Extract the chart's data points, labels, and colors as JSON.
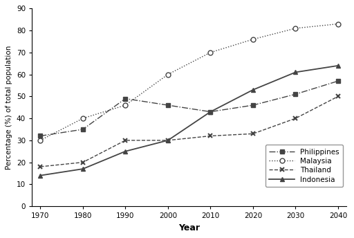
{
  "years": [
    1970,
    1980,
    1990,
    2000,
    2010,
    2020,
    2030,
    2040
  ],
  "philippines": [
    32,
    35,
    49,
    46,
    43,
    46,
    51,
    57
  ],
  "malaysia": [
    30,
    40,
    46,
    60,
    70,
    76,
    81,
    83
  ],
  "thailand": [
    18,
    20,
    30,
    30,
    32,
    33,
    40,
    50
  ],
  "indonesia": [
    14,
    17,
    25,
    30,
    43,
    53,
    61,
    64
  ],
  "ylabel": "Percentage (%) of total population",
  "xlabel": "Year",
  "ylim": [
    0,
    90
  ],
  "xlim_min": 1968,
  "xlim_max": 2042,
  "yticks": [
    0,
    10,
    20,
    30,
    40,
    50,
    60,
    70,
    80,
    90
  ],
  "xticks": [
    1970,
    1980,
    1990,
    2000,
    2010,
    2020,
    2030,
    2040
  ],
  "legend_labels": [
    "Philippines",
    "Malaysia",
    "Thailand",
    "Indonesia"
  ],
  "line_color": "#444444",
  "bg_color": "#ffffff"
}
